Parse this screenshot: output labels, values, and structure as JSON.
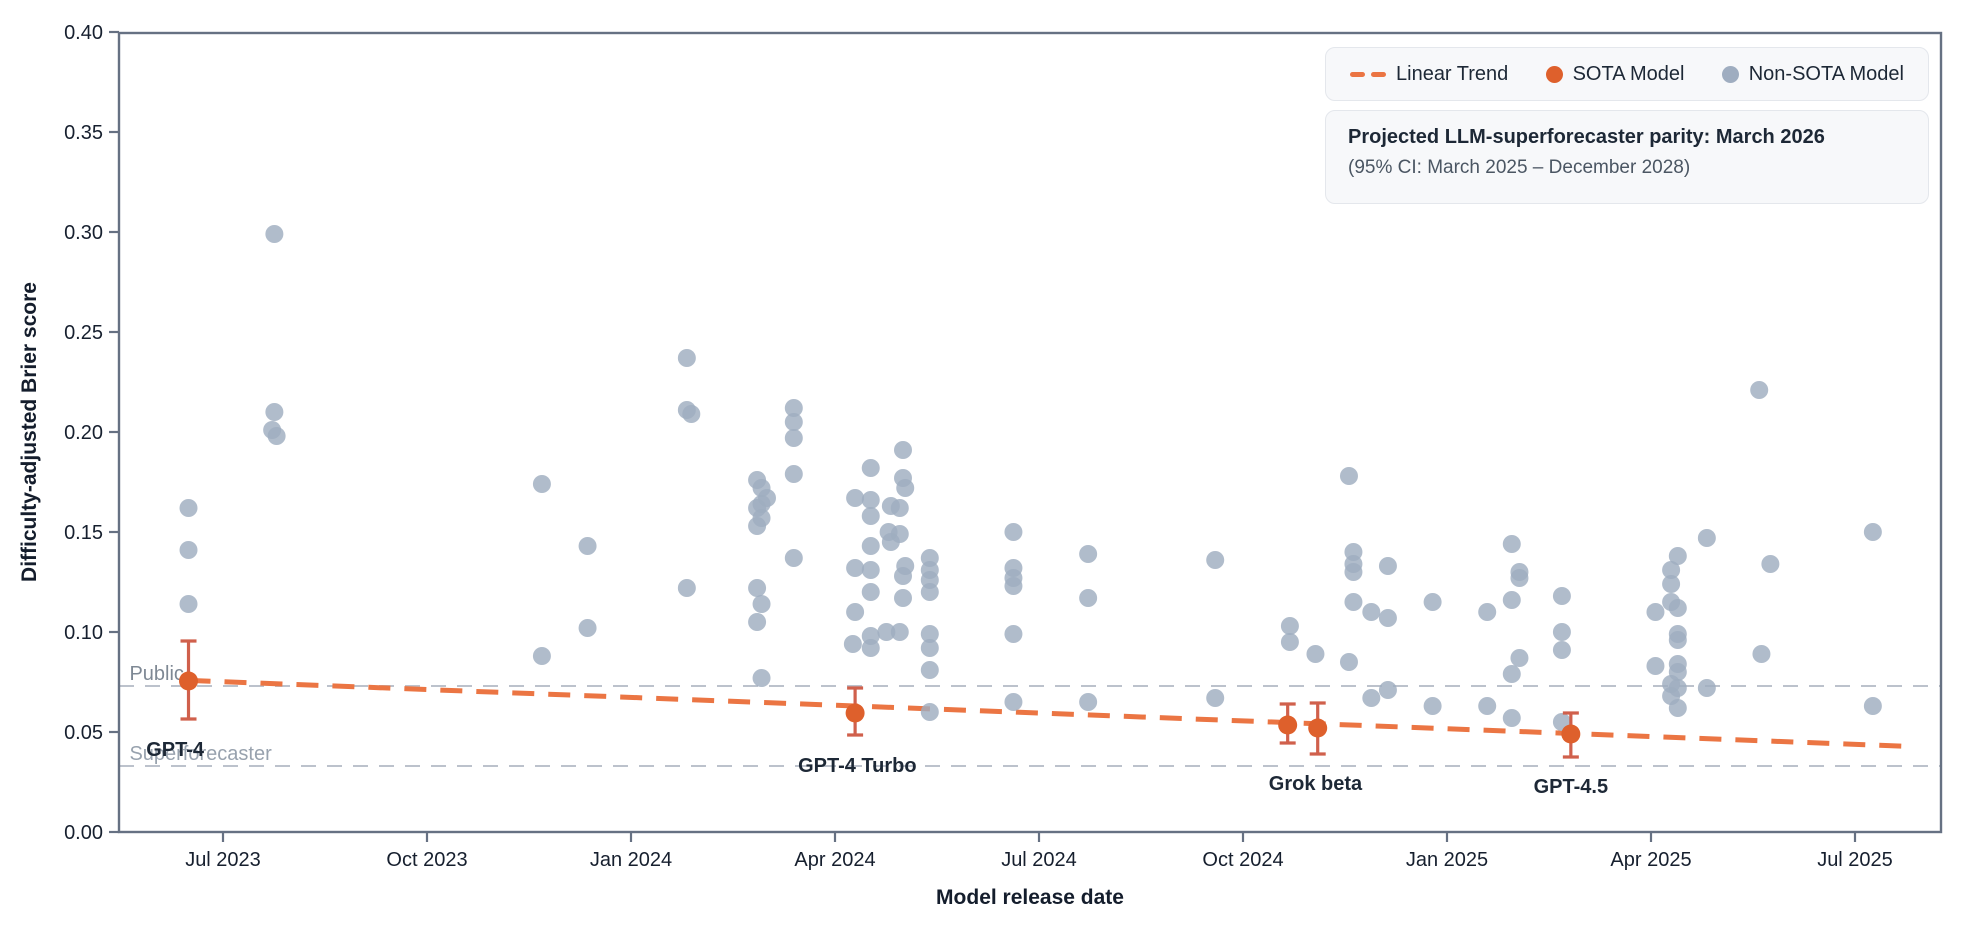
{
  "colors": {
    "sota": "#de602c",
    "trend": "#eb7543",
    "errorbar": "#d0604c",
    "nonsota": "#9fadc0",
    "frame": "#667183",
    "tick_text": "#161f2e",
    "ref_line": "#bcc2cc",
    "public_label": "#7e8894",
    "superforecaster_label": "#98a2ae",
    "model_label": "#1d2836"
  },
  "legend": {
    "linear_trend": "Linear Trend",
    "sota": "SOTA Model",
    "non_sota": "Non-SOTA Model"
  },
  "annotation": {
    "title": "Projected LLM-superforecaster parity: March 2026",
    "subtitle": "(95% CI: March 2025 – December 2028)"
  },
  "chart_data": {
    "type": "scatter",
    "xlabel": "Model release date",
    "ylabel": "Difficulty-adjusted Brier score",
    "ylim": [
      0,
      0.4
    ],
    "xlim": [
      "2023-05-16",
      "2025-08-08"
    ],
    "grid": false,
    "legend_position": "top-right",
    "y_ticks": [
      {
        "value": 0.0,
        "label": "0.00"
      },
      {
        "value": 0.05,
        "label": "0.05"
      },
      {
        "value": 0.1,
        "label": "0.10"
      },
      {
        "value": 0.15,
        "label": "0.15"
      },
      {
        "value": 0.2,
        "label": "0.20"
      },
      {
        "value": 0.25,
        "label": "0.25"
      },
      {
        "value": 0.3,
        "label": "0.30"
      },
      {
        "value": 0.35,
        "label": "0.35"
      },
      {
        "value": 0.4,
        "label": "0.40"
      }
    ],
    "x_ticks": [
      {
        "date": "2023-07-01",
        "label": "Jul 2023"
      },
      {
        "date": "2023-10-01",
        "label": "Oct 2023"
      },
      {
        "date": "2024-01-01",
        "label": "Jan 2024"
      },
      {
        "date": "2024-04-01",
        "label": "Apr 2024"
      },
      {
        "date": "2024-07-01",
        "label": "Jul 2024"
      },
      {
        "date": "2024-10-01",
        "label": "Oct 2024"
      },
      {
        "date": "2025-01-01",
        "label": "Jan 2025"
      },
      {
        "date": "2025-04-01",
        "label": "Apr 2025"
      },
      {
        "date": "2025-07-01",
        "label": "Jul 2025"
      }
    ],
    "reference_lines": [
      {
        "label": "Public",
        "value": 0.073,
        "label_date": "2023-05-20"
      },
      {
        "label": "Superforecaster",
        "value": 0.033,
        "label_date": "2023-05-20"
      }
    ],
    "trend": {
      "name": "Linear Trend",
      "start_date": "2023-06-16",
      "start_value": 0.0758,
      "end_date": "2025-07-27",
      "end_value": 0.0427
    },
    "sota_models": [
      {
        "name": "GPT-4",
        "date": "2023-06-16",
        "value": 0.0755,
        "ci_low": 0.0565,
        "ci_high": 0.0955,
        "label_date": "2023-06-10",
        "label_value": 0.0415
      },
      {
        "name": "GPT-4 Turbo",
        "date": "2024-04-10",
        "value": 0.0595,
        "ci_low": 0.0485,
        "ci_high": 0.072,
        "label_date": "2024-04-11",
        "label_value": 0.0335
      },
      {
        "name": "",
        "date": "2024-10-21",
        "value": 0.0535,
        "ci_low": 0.0445,
        "ci_high": 0.064
      },
      {
        "name": "Grok beta",
        "date": "2024-11-04",
        "value": 0.052,
        "ci_low": 0.039,
        "ci_high": 0.0645,
        "label_date": "2024-11-03",
        "label_value": 0.0245
      },
      {
        "name": "GPT-4.5",
        "date": "2025-02-26",
        "value": 0.049,
        "ci_low": 0.0375,
        "ci_high": 0.0595,
        "label_date": "2025-02-26",
        "label_value": 0.023
      }
    ],
    "non_sota_points": [
      [
        "2023-06-16",
        0.162
      ],
      [
        "2023-06-16",
        0.141
      ],
      [
        "2023-06-16",
        0.114
      ],
      [
        "2023-07-24",
        0.299
      ],
      [
        "2023-07-24",
        0.21
      ],
      [
        "2023-07-23",
        0.201
      ],
      [
        "2023-07-25",
        0.198
      ],
      [
        "2023-11-22",
        0.174
      ],
      [
        "2023-11-22",
        0.088
      ],
      [
        "2023-12-12",
        0.143
      ],
      [
        "2023-12-12",
        0.102
      ],
      [
        "2024-01-26",
        0.237
      ],
      [
        "2024-01-26",
        0.211
      ],
      [
        "2024-01-28",
        0.209
      ],
      [
        "2024-01-26",
        0.122
      ],
      [
        "2024-02-27",
        0.176
      ],
      [
        "2024-02-29",
        0.172
      ],
      [
        "2024-03-01",
        0.167
      ],
      [
        "2024-02-29",
        0.164
      ],
      [
        "2024-02-27",
        0.162
      ],
      [
        "2024-02-29",
        0.157
      ],
      [
        "2024-02-27",
        0.153
      ],
      [
        "2024-02-27",
        0.122
      ],
      [
        "2024-02-29",
        0.114
      ],
      [
        "2024-02-27",
        0.105
      ],
      [
        "2024-02-29",
        0.077
      ],
      [
        "2024-03-13",
        0.212
      ],
      [
        "2024-03-13",
        0.205
      ],
      [
        "2024-03-13",
        0.197
      ],
      [
        "2024-03-13",
        0.179
      ],
      [
        "2024-03-13",
        0.137
      ],
      [
        "2024-04-09",
        0.094
      ],
      [
        "2024-04-10",
        0.167
      ],
      [
        "2024-04-10",
        0.132
      ],
      [
        "2024-04-10",
        0.11
      ],
      [
        "2024-04-17",
        0.182
      ],
      [
        "2024-04-17",
        0.166
      ],
      [
        "2024-04-17",
        0.158
      ],
      [
        "2024-04-17",
        0.143
      ],
      [
        "2024-04-17",
        0.131
      ],
      [
        "2024-04-17",
        0.12
      ],
      [
        "2024-04-17",
        0.098
      ],
      [
        "2024-04-17",
        0.092
      ],
      [
        "2024-04-24",
        0.1
      ],
      [
        "2024-04-25",
        0.15
      ],
      [
        "2024-04-26",
        0.163
      ],
      [
        "2024-04-26",
        0.145
      ],
      [
        "2024-04-30",
        0.162
      ],
      [
        "2024-04-30",
        0.149
      ],
      [
        "2024-04-30",
        0.1
      ],
      [
        "2024-05-01",
        0.191
      ],
      [
        "2024-05-01",
        0.177
      ],
      [
        "2024-05-01",
        0.128
      ],
      [
        "2024-05-01",
        0.117
      ],
      [
        "2024-05-02",
        0.172
      ],
      [
        "2024-05-02",
        0.133
      ],
      [
        "2024-05-13",
        0.137
      ],
      [
        "2024-05-13",
        0.131
      ],
      [
        "2024-05-13",
        0.126
      ],
      [
        "2024-05-13",
        0.12
      ],
      [
        "2024-05-13",
        0.099
      ],
      [
        "2024-05-13",
        0.092
      ],
      [
        "2024-05-13",
        0.081
      ],
      [
        "2024-05-13",
        0.06
      ],
      [
        "2024-06-20",
        0.15
      ],
      [
        "2024-06-20",
        0.132
      ],
      [
        "2024-06-20",
        0.127
      ],
      [
        "2024-06-20",
        0.123
      ],
      [
        "2024-06-20",
        0.099
      ],
      [
        "2024-06-20",
        0.065
      ],
      [
        "2024-07-23",
        0.139
      ],
      [
        "2024-07-23",
        0.117
      ],
      [
        "2024-07-23",
        0.065
      ],
      [
        "2024-09-19",
        0.136
      ],
      [
        "2024-09-19",
        0.067
      ],
      [
        "2024-10-22",
        0.103
      ],
      [
        "2024-10-22",
        0.095
      ],
      [
        "2024-11-03",
        0.089
      ],
      [
        "2024-11-18",
        0.178
      ],
      [
        "2024-11-18",
        0.085
      ],
      [
        "2024-11-20",
        0.14
      ],
      [
        "2024-11-20",
        0.134
      ],
      [
        "2024-11-20",
        0.13
      ],
      [
        "2024-11-20",
        0.115
      ],
      [
        "2024-11-28",
        0.11
      ],
      [
        "2024-11-28",
        0.067
      ],
      [
        "2024-12-05",
        0.133
      ],
      [
        "2024-12-05",
        0.107
      ],
      [
        "2024-12-05",
        0.071
      ],
      [
        "2024-12-25",
        0.115
      ],
      [
        "2024-12-25",
        0.063
      ],
      [
        "2025-01-19",
        0.11
      ],
      [
        "2025-01-19",
        0.063
      ],
      [
        "2025-01-30",
        0.144
      ],
      [
        "2025-01-30",
        0.116
      ],
      [
        "2025-01-30",
        0.079
      ],
      [
        "2025-01-30",
        0.057
      ],
      [
        "2025-02-03",
        0.13
      ],
      [
        "2025-02-03",
        0.127
      ],
      [
        "2025-02-03",
        0.087
      ],
      [
        "2025-02-22",
        0.118
      ],
      [
        "2025-02-22",
        0.1
      ],
      [
        "2025-02-22",
        0.091
      ],
      [
        "2025-02-22",
        0.055
      ],
      [
        "2025-04-03",
        0.11
      ],
      [
        "2025-04-03",
        0.083
      ],
      [
        "2025-04-10",
        0.131
      ],
      [
        "2025-04-10",
        0.124
      ],
      [
        "2025-04-10",
        0.115
      ],
      [
        "2025-04-10",
        0.074
      ],
      [
        "2025-04-10",
        0.068
      ],
      [
        "2025-04-13",
        0.138
      ],
      [
        "2025-04-13",
        0.112
      ],
      [
        "2025-04-13",
        0.099
      ],
      [
        "2025-04-13",
        0.096
      ],
      [
        "2025-04-13",
        0.084
      ],
      [
        "2025-04-13",
        0.08
      ],
      [
        "2025-04-13",
        0.072
      ],
      [
        "2025-04-13",
        0.062
      ],
      [
        "2025-04-26",
        0.147
      ],
      [
        "2025-04-26",
        0.072
      ],
      [
        "2025-05-19",
        0.221
      ],
      [
        "2025-05-20",
        0.089
      ],
      [
        "2025-05-24",
        0.134
      ],
      [
        "2025-07-09",
        0.15
      ],
      [
        "2025-07-09",
        0.063
      ]
    ]
  }
}
